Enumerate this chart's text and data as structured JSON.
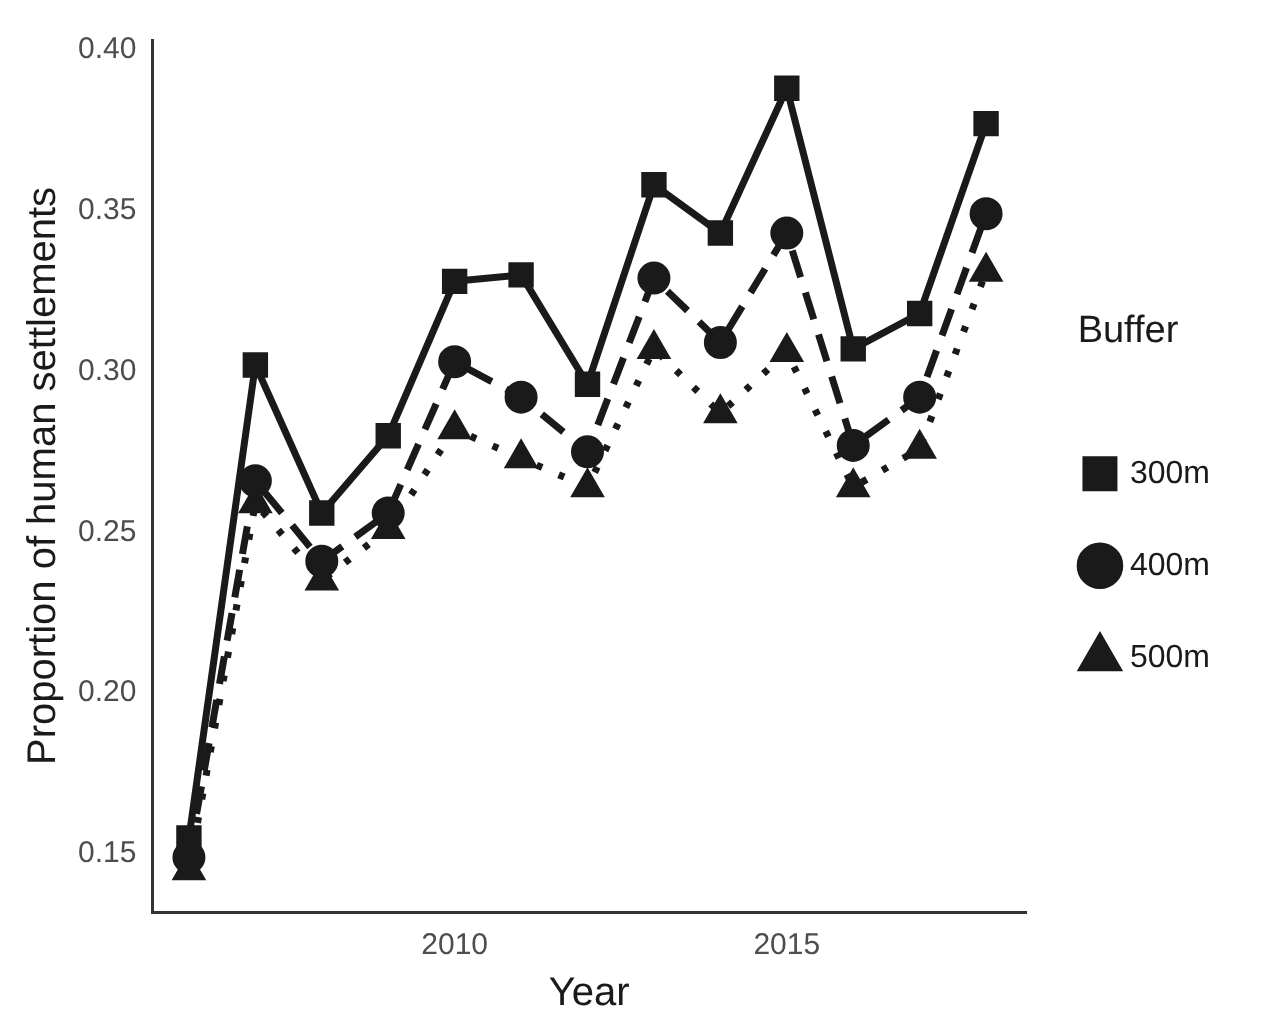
{
  "chart_data": {
    "type": "line",
    "xlabel": "Year",
    "ylabel": "Proportion of human settlements",
    "legend_title": "Buffer",
    "legend": "right",
    "grid": false,
    "xlim": [
      2005.45,
      2018.6
    ],
    "xticks": [
      2010,
      2015
    ],
    "ylim": [
      0.132,
      0.403
    ],
    "yticks": [
      0.15,
      {
        "value": 0.2,
        "label": "0.20"
      },
      0.25,
      {
        "value": 0.3,
        "label": "0.30"
      },
      0.35,
      {
        "value": 0.4,
        "label": "0.40"
      }
    ],
    "x": [
      2006,
      2007,
      2008,
      2009,
      2010,
      2011,
      2012,
      2013,
      2014,
      2015,
      2016,
      2017,
      2018
    ],
    "series": [
      {
        "name": "300m",
        "color": "#1a1a1a",
        "marker": "square",
        "line_style": "solid",
        "values": [
          0.155,
          0.302,
          0.256,
          0.28,
          0.328,
          0.33,
          0.296,
          0.358,
          0.343,
          0.388,
          0.307,
          0.318,
          0.377
        ]
      },
      {
        "name": "400m",
        "color": "#1a1a1a",
        "marker": "circle",
        "line_style": "dashed",
        "values": [
          0.149,
          0.266,
          0.241,
          0.256,
          0.303,
          0.292,
          0.275,
          0.329,
          0.309,
          0.343,
          0.277,
          0.292,
          0.349
        ]
      },
      {
        "name": "500m",
        "color": "#1a1a1a",
        "marker": "triangle",
        "line_style": "dotted",
        "values": [
          0.145,
          0.259,
          0.235,
          0.251,
          0.282,
          0.273,
          0.264,
          0.307,
          0.287,
          0.306,
          0.264,
          0.276,
          0.331
        ]
      }
    ]
  }
}
